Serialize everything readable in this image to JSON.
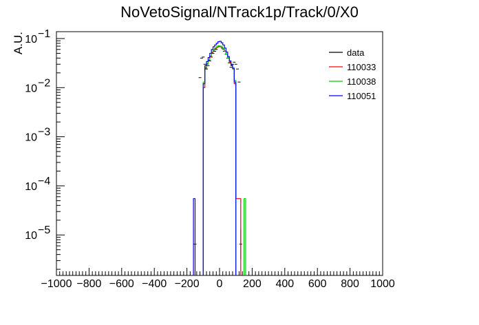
{
  "chart_data": {
    "type": "line",
    "title": "NoVetoSignal/NTrack1p/Track/0/X0",
    "xlabel": "",
    "ylabel": "A.U.",
    "xlim": [
      -1000,
      1000
    ],
    "ylim": [
      1e-06,
      0.1
    ],
    "yscale": "log",
    "grid": false,
    "legend_position": "top-right",
    "x_ticks": [
      -1000,
      -800,
      -600,
      -400,
      -200,
      0,
      200,
      400,
      600,
      800,
      1000
    ],
    "x_tick_labels": [
      "−1000",
      "−800",
      "−600",
      "−400",
      "−200",
      "0",
      "200",
      "400",
      "600",
      "800",
      "1000"
    ],
    "y_ticks": [
      0.1,
      0.01,
      0.001,
      0.0001,
      1e-05
    ],
    "y_tick_labels": [
      {
        "base": "10",
        "exp": "−1"
      },
      {
        "base": "10",
        "exp": "−2"
      },
      {
        "base": "10",
        "exp": "−3"
      },
      {
        "base": "10",
        "exp": "−4"
      },
      {
        "base": "10",
        "exp": "−5"
      }
    ],
    "series": [
      {
        "name": "data",
        "color": "#000000",
        "style": "points",
        "points": [
          {
            "x": -150,
            "y": 6.5e-06
          },
          {
            "x": -120,
            "y": 0.016
          },
          {
            "x": -110,
            "y": 0.04
          },
          {
            "x": -100,
            "y": 0.042
          },
          {
            "x": -90,
            "y": 0.03
          },
          {
            "x": -80,
            "y": 0.024
          },
          {
            "x": -70,
            "y": 0.028
          },
          {
            "x": -60,
            "y": 0.035
          },
          {
            "x": -50,
            "y": 0.042
          },
          {
            "x": -40,
            "y": 0.05
          },
          {
            "x": -30,
            "y": 0.055
          },
          {
            "x": -20,
            "y": 0.06
          },
          {
            "x": -10,
            "y": 0.068
          },
          {
            "x": 0,
            "y": 0.07
          },
          {
            "x": 10,
            "y": 0.068
          },
          {
            "x": 20,
            "y": 0.062
          },
          {
            "x": 30,
            "y": 0.055
          },
          {
            "x": 40,
            "y": 0.048
          },
          {
            "x": 50,
            "y": 0.04
          },
          {
            "x": 60,
            "y": 0.032
          },
          {
            "x": 70,
            "y": 0.026
          },
          {
            "x": 80,
            "y": 0.03
          },
          {
            "x": 90,
            "y": 0.033
          },
          {
            "x": 100,
            "y": 0.03
          },
          {
            "x": 110,
            "y": 0.024
          },
          {
            "x": 120,
            "y": 0.013
          },
          {
            "x": 130,
            "y": 6.5e-06
          }
        ]
      },
      {
        "name": "110033",
        "color": "#ff0000",
        "style": "step",
        "bins": [
          {
            "x0": -100,
            "x1": -90,
            "y": 0.01
          },
          {
            "x0": -90,
            "x1": -80,
            "y": 0.025
          },
          {
            "x0": -80,
            "x1": -70,
            "y": 0.03
          },
          {
            "x0": -70,
            "x1": -60,
            "y": 0.036
          },
          {
            "x0": -60,
            "x1": -50,
            "y": 0.043
          },
          {
            "x0": -50,
            "x1": -40,
            "y": 0.052
          },
          {
            "x0": -40,
            "x1": -30,
            "y": 0.058
          },
          {
            "x0": -30,
            "x1": -20,
            "y": 0.062
          },
          {
            "x0": -20,
            "x1": -10,
            "y": 0.066
          },
          {
            "x0": -10,
            "x1": 0,
            "y": 0.069
          },
          {
            "x0": 0,
            "x1": 10,
            "y": 0.068
          },
          {
            "x0": 10,
            "x1": 20,
            "y": 0.065
          },
          {
            "x0": 20,
            "x1": 30,
            "y": 0.06
          },
          {
            "x0": 30,
            "x1": 40,
            "y": 0.055
          },
          {
            "x0": 40,
            "x1": 50,
            "y": 0.048
          },
          {
            "x0": 50,
            "x1": 60,
            "y": 0.04
          },
          {
            "x0": 60,
            "x1": 70,
            "y": 0.033
          },
          {
            "x0": 70,
            "x1": 80,
            "y": 0.028
          },
          {
            "x0": 80,
            "x1": 90,
            "y": 0.024
          },
          {
            "x0": 90,
            "x1": 100,
            "y": 0.012
          },
          {
            "x0": 100,
            "x1": 130,
            "y": 5.5e-05
          }
        ]
      },
      {
        "name": "110038",
        "color": "#00cc00",
        "style": "step",
        "bins": [
          {
            "x0": -100,
            "x1": -90,
            "y": 0.013
          },
          {
            "x0": -90,
            "x1": -80,
            "y": 0.026
          },
          {
            "x0": -80,
            "x1": -70,
            "y": 0.031
          },
          {
            "x0": -70,
            "x1": -60,
            "y": 0.037
          },
          {
            "x0": -60,
            "x1": -50,
            "y": 0.044
          },
          {
            "x0": -50,
            "x1": -40,
            "y": 0.053
          },
          {
            "x0": -40,
            "x1": -30,
            "y": 0.059
          },
          {
            "x0": -30,
            "x1": -20,
            "y": 0.064
          },
          {
            "x0": -20,
            "x1": -10,
            "y": 0.068
          },
          {
            "x0": -10,
            "x1": 0,
            "y": 0.071
          },
          {
            "x0": 0,
            "x1": 10,
            "y": 0.07
          },
          {
            "x0": 10,
            "x1": 20,
            "y": 0.067
          },
          {
            "x0": 20,
            "x1": 30,
            "y": 0.062
          },
          {
            "x0": 30,
            "x1": 40,
            "y": 0.056
          },
          {
            "x0": 40,
            "x1": 50,
            "y": 0.048
          },
          {
            "x0": 50,
            "x1": 60,
            "y": 0.04
          },
          {
            "x0": 60,
            "x1": 70,
            "y": 0.034
          },
          {
            "x0": 70,
            "x1": 80,
            "y": 0.029
          },
          {
            "x0": 80,
            "x1": 90,
            "y": 0.024
          },
          {
            "x0": 90,
            "x1": 100,
            "y": 0.014
          },
          {
            "x0": 150,
            "x1": 160,
            "y": 5.5e-05
          }
        ]
      },
      {
        "name": "110051",
        "color": "#0000ff",
        "style": "step",
        "bins": [
          {
            "x0": -160,
            "x1": -150,
            "y": 5.5e-05
          },
          {
            "x0": -100,
            "x1": -90,
            "y": 0.012
          },
          {
            "x0": -90,
            "x1": -80,
            "y": 0.028
          },
          {
            "x0": -80,
            "x1": -70,
            "y": 0.034
          },
          {
            "x0": -70,
            "x1": -60,
            "y": 0.041
          },
          {
            "x0": -60,
            "x1": -50,
            "y": 0.05
          },
          {
            "x0": -50,
            "x1": -40,
            "y": 0.06
          },
          {
            "x0": -40,
            "x1": -30,
            "y": 0.068
          },
          {
            "x0": -30,
            "x1": -20,
            "y": 0.074
          },
          {
            "x0": -20,
            "x1": -10,
            "y": 0.08
          },
          {
            "x0": -10,
            "x1": 0,
            "y": 0.086
          },
          {
            "x0": 0,
            "x1": 10,
            "y": 0.088
          },
          {
            "x0": 10,
            "x1": 20,
            "y": 0.082
          },
          {
            "x0": 20,
            "x1": 30,
            "y": 0.074
          },
          {
            "x0": 30,
            "x1": 40,
            "y": 0.064
          },
          {
            "x0": 40,
            "x1": 50,
            "y": 0.053
          },
          {
            "x0": 50,
            "x1": 60,
            "y": 0.043
          },
          {
            "x0": 60,
            "x1": 70,
            "y": 0.035
          },
          {
            "x0": 70,
            "x1": 80,
            "y": 0.029
          },
          {
            "x0": 80,
            "x1": 90,
            "y": 0.025
          },
          {
            "x0": 90,
            "x1": 100,
            "y": 0.013
          }
        ]
      }
    ]
  }
}
